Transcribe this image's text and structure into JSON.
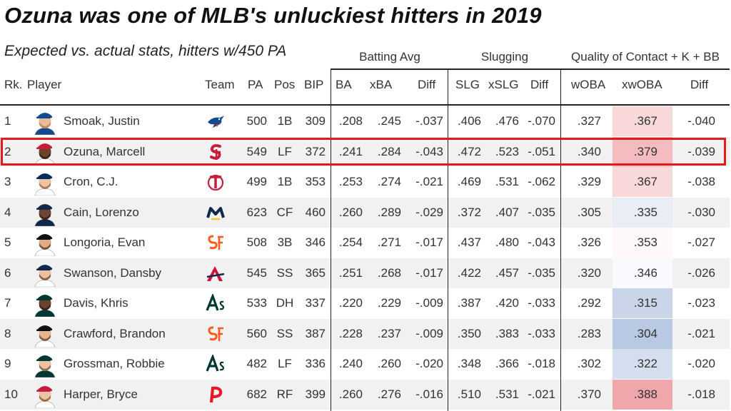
{
  "title": "Ozuna was one of MLB's unluckiest hitters in 2019",
  "subtitle": "Expected vs. actual stats, hitters w/450 PA",
  "groups": {
    "batting_avg": "Batting Avg",
    "slugging": "Slugging",
    "quality": "Quality of Contact + K + BB"
  },
  "headers": {
    "rk": "Rk.",
    "player": "Player",
    "team": "Team",
    "pa": "PA",
    "pos": "Pos",
    "bip": "BIP",
    "ba": "BA",
    "xba": "xBA",
    "diff1": "Diff",
    "slg": "SLG",
    "xslg": "xSLG",
    "diff2": "Diff",
    "woba": "wOBA",
    "xwoba": "xwOBA",
    "diff3": "Diff"
  },
  "colors": {
    "highlight_border": "#e01b1b",
    "shade_high": "#f0a7ab",
    "shade_low": "#b9c8e3",
    "row_alt": "#f1f1f1"
  },
  "chart_data": {
    "type": "table",
    "title": "Ozuna was one of MLB's unluckiest hitters in 2019",
    "subtitle": "Expected vs. actual stats, hitters w/450 PA",
    "highlighted_row": 2,
    "rows": [
      {
        "rk": "1",
        "player": "Smoak, Justin",
        "team": "Blue Jays",
        "team_icon": "blue-jays-logo-icon",
        "cap": "#134a8e",
        "jersey": "#134a8e",
        "skin": "#e9bb9a",
        "beard": "#b0714a",
        "pa": "500",
        "pos": "1B",
        "bip": "309",
        "ba": ".208",
        "xba": ".245",
        "diff1": "-.037",
        "slg": ".406",
        "xslg": ".476",
        "diff2": "-.070",
        "woba": ".327",
        "xwoba": ".367",
        "diff3": "-.040",
        "xwoba_num": 0.367
      },
      {
        "rk": "2",
        "player": "Ozuna, Marcell",
        "team": "Cardinals",
        "team_icon": "cardinals-logo-icon",
        "cap": "#c41e3a",
        "jersey": "#ffffff",
        "skin": "#6b4326",
        "beard": "#2a1a10",
        "pa": "549",
        "pos": "LF",
        "bip": "372",
        "ba": ".241",
        "xba": ".284",
        "diff1": "-.043",
        "slg": ".472",
        "xslg": ".523",
        "diff2": "-.051",
        "woba": ".340",
        "xwoba": ".379",
        "diff3": "-.039",
        "xwoba_num": 0.379
      },
      {
        "rk": "3",
        "player": "Cron, C.J.",
        "team": "Twins",
        "team_icon": "twins-logo-icon",
        "cap": "#002b5c",
        "jersey": "#ffffff",
        "skin": "#eec2a3",
        "beard": "#8a5a3a",
        "pa": "499",
        "pos": "1B",
        "bip": "353",
        "ba": ".253",
        "xba": ".274",
        "diff1": "-.021",
        "slg": ".469",
        "xslg": ".531",
        "diff2": "-.062",
        "woba": ".329",
        "xwoba": ".367",
        "diff3": "-.038",
        "xwoba_num": 0.367
      },
      {
        "rk": "4",
        "player": "Cain, Lorenzo",
        "team": "Brewers",
        "team_icon": "brewers-logo-icon",
        "cap": "#12284b",
        "jersey": "#12284b",
        "skin": "#6e4530",
        "beard": "#2a1a10",
        "pa": "623",
        "pos": "CF",
        "bip": "460",
        "ba": ".260",
        "xba": ".289",
        "diff1": "-.029",
        "slg": ".372",
        "xslg": ".407",
        "diff2": "-.035",
        "woba": ".305",
        "xwoba": ".335",
        "diff3": "-.030",
        "xwoba_num": 0.335
      },
      {
        "rk": "5",
        "player": "Longoria, Evan",
        "team": "Giants",
        "team_icon": "giants-logo-icon",
        "cap": "#111111",
        "jersey": "#ffffff",
        "skin": "#e0ac88",
        "beard": "#4a3020",
        "pa": "508",
        "pos": "3B",
        "bip": "346",
        "ba": ".254",
        "xba": ".271",
        "diff1": "-.017",
        "slg": ".437",
        "xslg": ".480",
        "diff2": "-.043",
        "woba": ".326",
        "xwoba": ".353",
        "diff3": "-.027",
        "xwoba_num": 0.353
      },
      {
        "rk": "6",
        "player": "Swanson, Dansby",
        "team": "Braves",
        "team_icon": "braves-logo-icon",
        "cap": "#13274f",
        "jersey": "#ffffff",
        "skin": "#ecc0a0",
        "beard": "#5a3a22",
        "pa": "545",
        "pos": "SS",
        "bip": "365",
        "ba": ".251",
        "xba": ".268",
        "diff1": "-.017",
        "slg": ".422",
        "xslg": ".457",
        "diff2": "-.035",
        "woba": ".320",
        "xwoba": ".346",
        "diff3": "-.026",
        "xwoba_num": 0.346
      },
      {
        "rk": "7",
        "player": "Davis, Khris",
        "team": "Athletics",
        "team_icon": "athletics-logo-icon",
        "cap": "#003831",
        "jersey": "#003831",
        "skin": "#6a4230",
        "beard": "#2a1a10",
        "pa": "533",
        "pos": "DH",
        "bip": "337",
        "ba": ".220",
        "xba": ".229",
        "diff1": "-.009",
        "slg": ".387",
        "xslg": ".420",
        "diff2": "-.033",
        "woba": ".292",
        "xwoba": ".315",
        "diff3": "-.023",
        "xwoba_num": 0.315
      },
      {
        "rk": "8",
        "player": "Crawford, Brandon",
        "team": "Giants",
        "team_icon": "giants-logo-icon",
        "cap": "#111111",
        "jersey": "#ffffff",
        "skin": "#e6b592",
        "beard": "#5a3a22",
        "pa": "560",
        "pos": "SS",
        "bip": "387",
        "ba": ".228",
        "xba": ".237",
        "diff1": "-.009",
        "slg": ".350",
        "xslg": ".383",
        "diff2": "-.033",
        "woba": ".283",
        "xwoba": ".304",
        "diff3": "-.021",
        "xwoba_num": 0.304
      },
      {
        "rk": "9",
        "player": "Grossman, Robbie",
        "team": "Athletics",
        "team_icon": "athletics-logo-icon",
        "cap": "#003831",
        "jersey": "#003831",
        "skin": "#ecc2a4",
        "beard": "#6a4a30",
        "pa": "482",
        "pos": "LF",
        "bip": "336",
        "ba": ".240",
        "xba": ".260",
        "diff1": "-.020",
        "slg": ".348",
        "xslg": ".366",
        "diff2": "-.018",
        "woba": ".302",
        "xwoba": ".322",
        "diff3": "-.020",
        "xwoba_num": 0.322
      },
      {
        "rk": "10",
        "player": "Harper, Bryce",
        "team": "Phillies",
        "team_icon": "phillies-logo-icon",
        "cap": "#c41e3a",
        "jersey": "#ffffff",
        "skin": "#eec2a3",
        "beard": "#7a4a2a",
        "pa": "682",
        "pos": "RF",
        "bip": "399",
        "ba": ".260",
        "xba": ".276",
        "diff1": "-.016",
        "slg": ".510",
        "xslg": ".531",
        "diff2": "-.021",
        "woba": ".370",
        "xwoba": ".388",
        "diff3": "-.018",
        "xwoba_num": 0.388
      }
    ]
  }
}
